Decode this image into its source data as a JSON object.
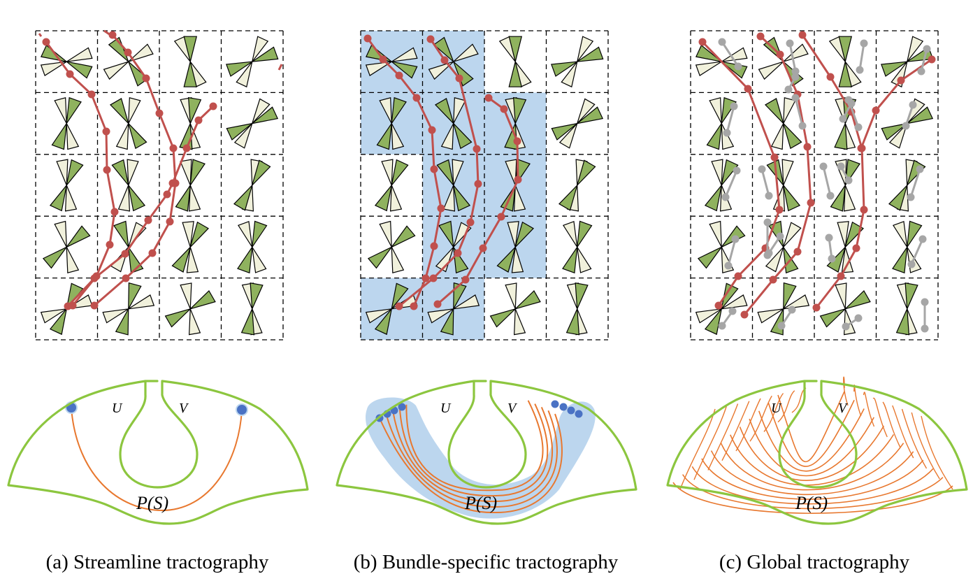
{
  "panels": [
    {
      "caption": "(a) Streamline tractography",
      "region_labels": {
        "left": "U",
        "right": "V",
        "path": "P(S)"
      }
    },
    {
      "caption": "(b) Bundle-specific tractography",
      "region_labels": {
        "left": "U",
        "right": "V",
        "path": "P(S)"
      }
    },
    {
      "caption": "(c) Global tractography",
      "region_labels": {
        "left": "U",
        "right": "V",
        "path": "P(S)"
      }
    }
  ],
  "colors": {
    "streamline": "#c0504d",
    "segment_gray": "#a6a6a6",
    "bundle_highlight": "#bcd6ee",
    "fod_green": "#8fb25e",
    "fod_cream": "#f1f1dc",
    "cortex_outline": "#8cc63f",
    "fiber_orange": "#e8782f",
    "endpoint_blue": "#4a72c4"
  },
  "icons": {
    "fod_glyph": "bowtie-fod-icon",
    "seed_point": "endpoint-dot-icon"
  }
}
